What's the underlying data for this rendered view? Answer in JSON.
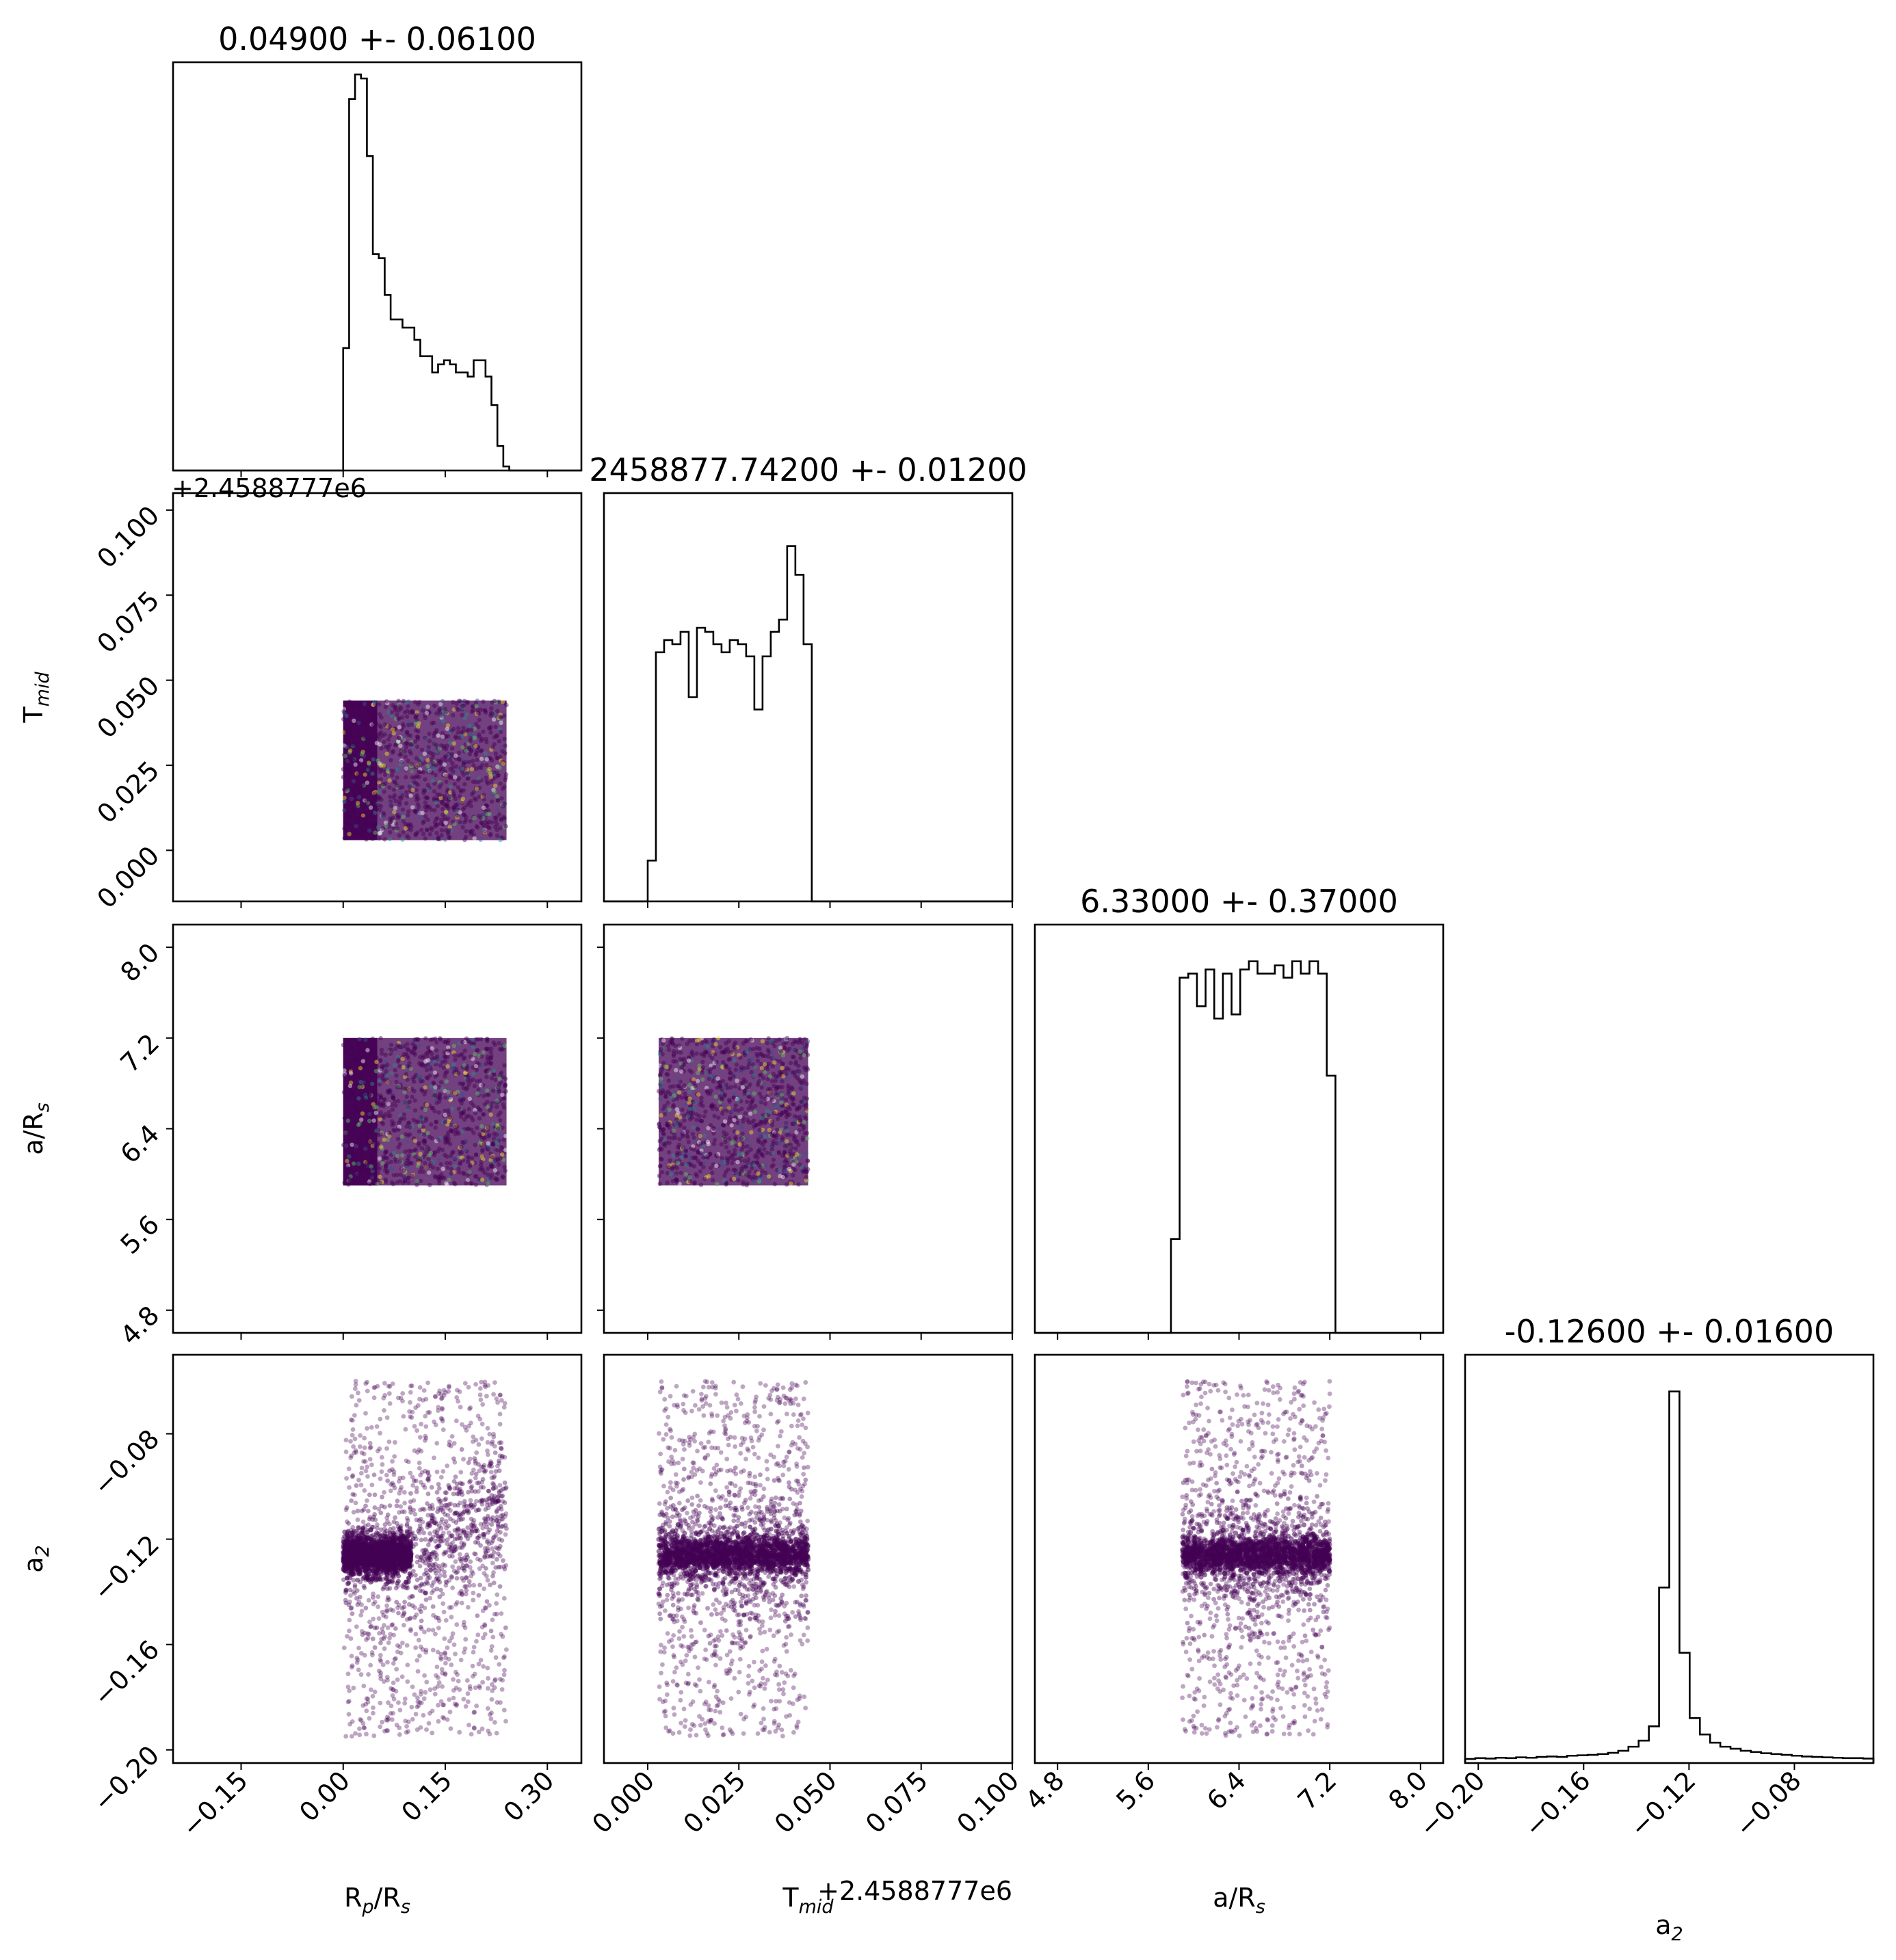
{
  "figure": {
    "background": "#ffffff",
    "ink": "#000000",
    "point_color": "#440154"
  },
  "chart_data": [
    {
      "type": "histogram",
      "row": 0,
      "col": 0,
      "title": "0.04900 +- 0.06100",
      "xlim": [
        -0.25,
        0.35
      ],
      "x_ticks": [
        -0.15,
        0.0,
        0.15,
        0.3
      ],
      "bin_range": [
        0.0,
        0.244
      ],
      "heights": [
        0.3,
        0.91,
        0.97,
        0.96,
        0.77,
        0.53,
        0.52,
        0.43,
        0.37,
        0.37,
        0.35,
        0.35,
        0.32,
        0.28,
        0.28,
        0.24,
        0.26,
        0.27,
        0.26,
        0.24,
        0.24,
        0.23,
        0.27,
        0.27,
        0.23,
        0.16,
        0.06,
        0.01
      ]
    },
    {
      "type": "scatter",
      "row": 1,
      "col": 0,
      "xlim": [
        -0.25,
        0.35
      ],
      "ylim": [
        -0.015,
        0.105
      ],
      "x_ticks": [
        -0.15,
        0.0,
        0.15,
        0.3
      ],
      "y_ticks": [
        0.0,
        0.025,
        0.05,
        0.075,
        0.1
      ],
      "y_tick_labels": [
        "0.000",
        "0.025",
        "0.050",
        "0.075",
        "0.100"
      ],
      "y_offset_label": "+2.4588777e6",
      "ylabel": "T",
      "ylabel_sub": "mid",
      "x_range": [
        0.0,
        0.24
      ],
      "y_range": [
        0.003,
        0.044
      ],
      "x_dense_edge": 0.05
    },
    {
      "type": "histogram",
      "row": 1,
      "col": 1,
      "title": "2458877.74200 +- 0.01200",
      "xlim": [
        -0.012,
        0.1
      ],
      "x_ticks": [
        0.0,
        0.025,
        0.05,
        0.075,
        0.1
      ],
      "bin_range": [
        0.0,
        0.045
      ],
      "heights": [
        0.1,
        0.61,
        0.64,
        0.63,
        0.66,
        0.5,
        0.67,
        0.66,
        0.63,
        0.61,
        0.64,
        0.63,
        0.6,
        0.47,
        0.6,
        0.66,
        0.69,
        0.87,
        0.8,
        0.63
      ]
    },
    {
      "type": "scatter",
      "row": 2,
      "col": 0,
      "xlim": [
        -0.25,
        0.35
      ],
      "ylim": [
        4.6,
        8.2
      ],
      "x_ticks": [
        -0.15,
        0.0,
        0.15,
        0.3
      ],
      "y_ticks": [
        4.8,
        5.6,
        6.4,
        7.2,
        8.0
      ],
      "y_tick_labels": [
        "4.8",
        "5.6",
        "6.4",
        "7.2",
        "8.0"
      ],
      "ylabel": "a/R",
      "ylabel_sub": "s",
      "x_range": [
        0.0,
        0.24
      ],
      "y_range": [
        5.9,
        7.2
      ],
      "x_dense_edge": 0.05
    },
    {
      "type": "scatter",
      "row": 2,
      "col": 1,
      "xlim": [
        -0.012,
        0.1
      ],
      "ylim": [
        4.6,
        8.2
      ],
      "x_ticks": [
        0.0,
        0.025,
        0.05,
        0.075,
        0.1
      ],
      "y_ticks": [
        4.8,
        5.6,
        6.4,
        7.2,
        8.0
      ],
      "x_range": [
        0.003,
        0.044
      ],
      "y_range": [
        5.9,
        7.2
      ]
    },
    {
      "type": "histogram",
      "row": 2,
      "col": 2,
      "title": "6.33000 +- 0.37000",
      "xlim": [
        4.6,
        8.2
      ],
      "x_ticks": [
        4.8,
        5.6,
        6.4,
        7.2,
        8.0
      ],
      "bin_range": [
        5.8,
        7.25
      ],
      "heights": [
        0.23,
        0.87,
        0.88,
        0.8,
        0.89,
        0.77,
        0.88,
        0.78,
        0.89,
        0.91,
        0.88,
        0.88,
        0.9,
        0.87,
        0.91,
        0.88,
        0.91,
        0.88,
        0.63
      ]
    },
    {
      "type": "scatter",
      "row": 3,
      "col": 0,
      "xlim": [
        -0.25,
        0.35
      ],
      "ylim": [
        -0.205,
        -0.05
      ],
      "x_ticks": [
        -0.15,
        0.0,
        0.15,
        0.3
      ],
      "x_tick_labels": [
        "−0.15",
        "0.00",
        "0.15",
        "0.30"
      ],
      "y_ticks": [
        -0.2,
        -0.16,
        -0.12,
        -0.08
      ],
      "y_tick_labels": [
        "−0.20",
        "−0.16",
        "−0.12",
        "−0.08"
      ],
      "xlabel": "R",
      "xlabel_sub": "p",
      "xlabel_tail": "/R",
      "xlabel_tail_sub": "s",
      "ylabel": "a",
      "ylabel_sub": "2",
      "x_range": [
        0.0,
        0.24
      ],
      "core_y": -0.126,
      "core_x_range": [
        0.0,
        0.1
      ],
      "trend": 0.12
    },
    {
      "type": "scatter",
      "row": 3,
      "col": 1,
      "xlim": [
        -0.012,
        0.1
      ],
      "ylim": [
        -0.205,
        -0.05
      ],
      "x_ticks": [
        0.0,
        0.025,
        0.05,
        0.075,
        0.1
      ],
      "x_tick_labels": [
        "0.000",
        "0.025",
        "0.050",
        "0.075",
        "0.100"
      ],
      "x_offset_label": "+2.4588777e6",
      "xlabel": "T",
      "xlabel_sub": "mid",
      "x_range": [
        0.003,
        0.044
      ],
      "core_y": -0.126
    },
    {
      "type": "scatter",
      "row": 3,
      "col": 2,
      "xlim": [
        4.6,
        8.2
      ],
      "ylim": [
        -0.205,
        -0.05
      ],
      "x_ticks": [
        4.8,
        5.6,
        6.4,
        7.2,
        8.0
      ],
      "x_tick_labels": [
        "4.8",
        "5.6",
        "6.4",
        "7.2",
        "8.0"
      ],
      "xlabel": "a/R",
      "xlabel_sub": "s",
      "x_range": [
        5.9,
        7.2
      ],
      "core_y": -0.126
    },
    {
      "type": "histogram",
      "row": 3,
      "col": 3,
      "title": "-0.12600 +- 0.01600",
      "xlim": [
        -0.205,
        -0.05
      ],
      "x_ticks": [
        -0.2,
        -0.16,
        -0.12,
        -0.08
      ],
      "x_tick_labels": [
        "−0.20",
        "−0.16",
        "−0.12",
        "−0.08"
      ],
      "xlabel": "a",
      "xlabel_sub": "2",
      "bin_range": [
        -0.205,
        -0.05
      ],
      "heights": [
        0.01,
        0.012,
        0.011,
        0.013,
        0.012,
        0.014,
        0.013,
        0.015,
        0.016,
        0.015,
        0.018,
        0.019,
        0.02,
        0.022,
        0.025,
        0.03,
        0.04,
        0.055,
        0.09,
        0.43,
        0.91,
        0.27,
        0.11,
        0.07,
        0.05,
        0.04,
        0.035,
        0.03,
        0.027,
        0.024,
        0.022,
        0.02,
        0.018,
        0.016,
        0.015,
        0.014,
        0.013,
        0.012,
        0.012,
        0.011
      ]
    }
  ]
}
